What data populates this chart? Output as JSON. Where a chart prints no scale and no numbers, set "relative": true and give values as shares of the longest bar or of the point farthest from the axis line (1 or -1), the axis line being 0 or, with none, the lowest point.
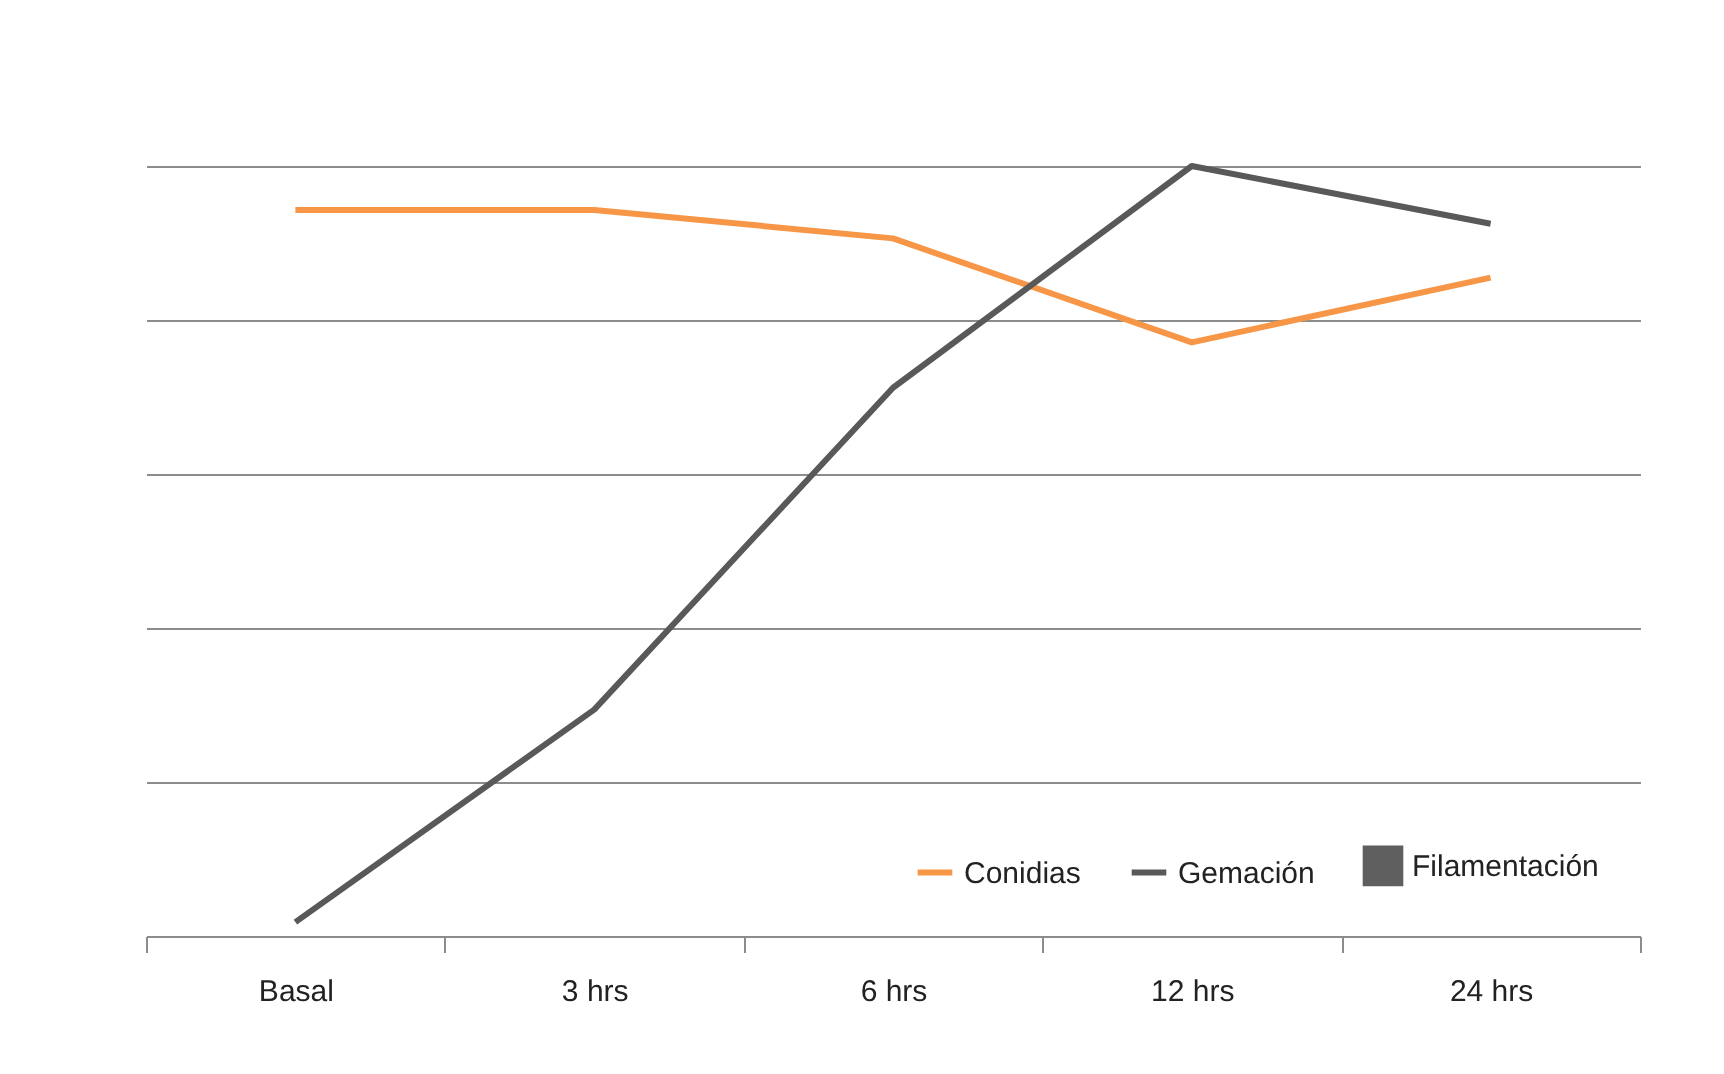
{
  "chart_data": {
    "type": "line",
    "relative": true,
    "categories": [
      "Basal",
      "3 hrs",
      "6 hrs",
      "12 hrs",
      "24 hrs"
    ],
    "series": [
      {
        "name": "Conidias",
        "color": "#f79646",
        "values": [
          0.943,
          0.943,
          0.906,
          0.771,
          0.855
        ]
      },
      {
        "name": "Gemación",
        "color": "#595959",
        "values": [
          0.018,
          0.294,
          0.712,
          1,
          0.925
        ]
      },
      {
        "name": "Filamentación",
        "type": "bar",
        "color": "#5f5f5f",
        "values": [
          null,
          null,
          null,
          null,
          null
        ]
      }
    ],
    "grid": "y",
    "legend": "bottom right"
  }
}
